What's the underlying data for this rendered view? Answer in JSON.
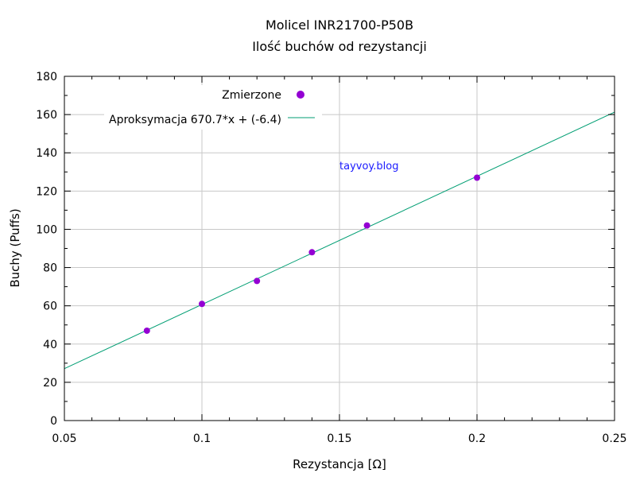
{
  "chart_data": {
    "type": "scatter",
    "title": "Molicel INR21700-P50B",
    "subtitle": "Ilość buchów od rezystancji",
    "xlabel": "Rezystancja [Ω]",
    "ylabel": "Buchy (Puffs)",
    "xlim": [
      0.05,
      0.25
    ],
    "ylim": [
      0,
      180
    ],
    "x_ticks": [
      "0.05",
      "0.1",
      "0.15",
      "0.2",
      "0.25"
    ],
    "y_ticks": [
      "0",
      "20",
      "40",
      "60",
      "80",
      "100",
      "120",
      "140",
      "160",
      "180"
    ],
    "grid": true,
    "legend_position": "top-left",
    "series": [
      {
        "name": "Zmierzone",
        "kind": "scatter",
        "color": "#9400d3",
        "x": [
          0.08,
          0.1,
          0.12,
          0.14,
          0.16,
          0.2
        ],
        "y": [
          47,
          61,
          73,
          88,
          102,
          127
        ]
      },
      {
        "name": "Aproksymacja",
        "label": "670.7*x + (-6.4)",
        "kind": "line",
        "color": "#009e73",
        "slope": 670.7,
        "intercept": -6.4
      }
    ],
    "annotations": [
      "tayvoy.blog"
    ]
  }
}
